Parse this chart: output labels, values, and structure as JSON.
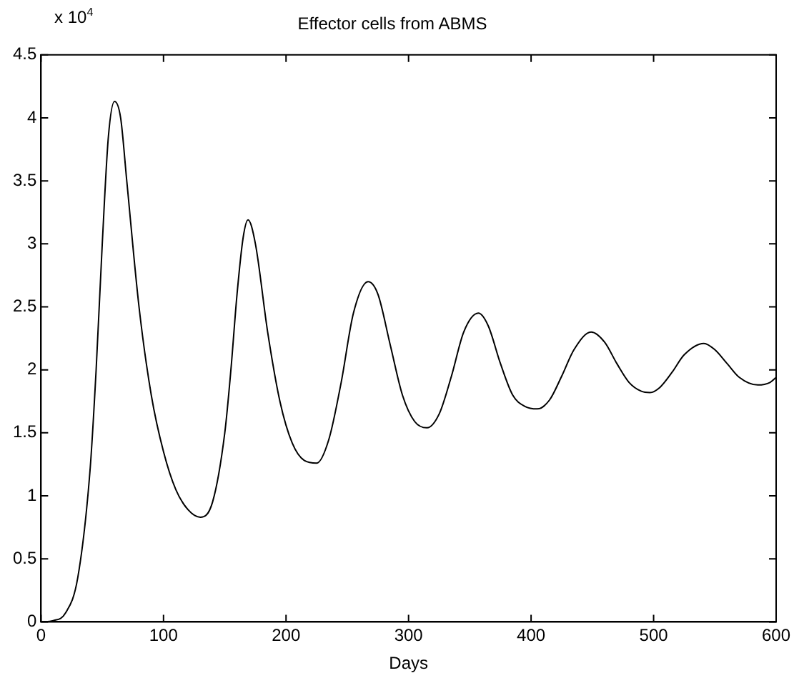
{
  "chart_data": {
    "type": "line",
    "title": "Effector cells from ABMS",
    "xlabel": "Days",
    "annotations": [
      "x 10$^{4}$"
    ],
    "x": [
      0,
      10,
      20,
      30,
      40,
      45,
      50,
      55,
      60,
      65,
      70,
      80,
      90,
      100,
      110,
      120,
      130,
      140,
      150,
      155,
      160,
      165,
      169,
      175,
      185,
      195,
      205,
      215,
      225,
      235,
      245,
      255,
      267,
      275,
      285,
      295,
      305,
      315,
      325,
      335,
      345,
      357,
      365,
      375,
      385,
      395,
      405,
      415,
      425,
      435,
      449,
      460,
      470,
      480,
      490,
      497,
      505,
      515,
      525,
      541,
      550,
      560,
      570,
      585,
      595,
      600
    ],
    "series": [
      {
        "color": "#000000",
        "values": [
          0,
          0.01,
          0.07,
          0.35,
          1.2,
          2.0,
          3.0,
          3.85,
          4.13,
          4.0,
          3.5,
          2.5,
          1.8,
          1.35,
          1.05,
          0.89,
          0.83,
          0.95,
          1.5,
          2.0,
          2.6,
          3.05,
          3.19,
          3.0,
          2.3,
          1.75,
          1.42,
          1.28,
          1.26,
          1.45,
          1.9,
          2.45,
          2.7,
          2.6,
          2.2,
          1.8,
          1.59,
          1.54,
          1.65,
          1.95,
          2.3,
          2.45,
          2.35,
          2.05,
          1.8,
          1.71,
          1.69,
          1.76,
          1.95,
          2.16,
          2.3,
          2.22,
          2.05,
          1.9,
          1.83,
          1.82,
          1.86,
          1.98,
          2.12,
          2.21,
          2.16,
          2.05,
          1.94,
          1.88,
          1.9,
          1.94
        ]
      }
    ],
    "xlim": [
      0,
      600
    ],
    "xticks": [
      0,
      100,
      200,
      300,
      400,
      500,
      600
    ],
    "ylim": [
      0,
      4.5
    ],
    "yticks": [
      0,
      0.5,
      1,
      1.5,
      2,
      2.5,
      3,
      3.5,
      4,
      4.5
    ],
    "grid": false,
    "legend": false,
    "marker": "none",
    "line_style": "solid"
  }
}
